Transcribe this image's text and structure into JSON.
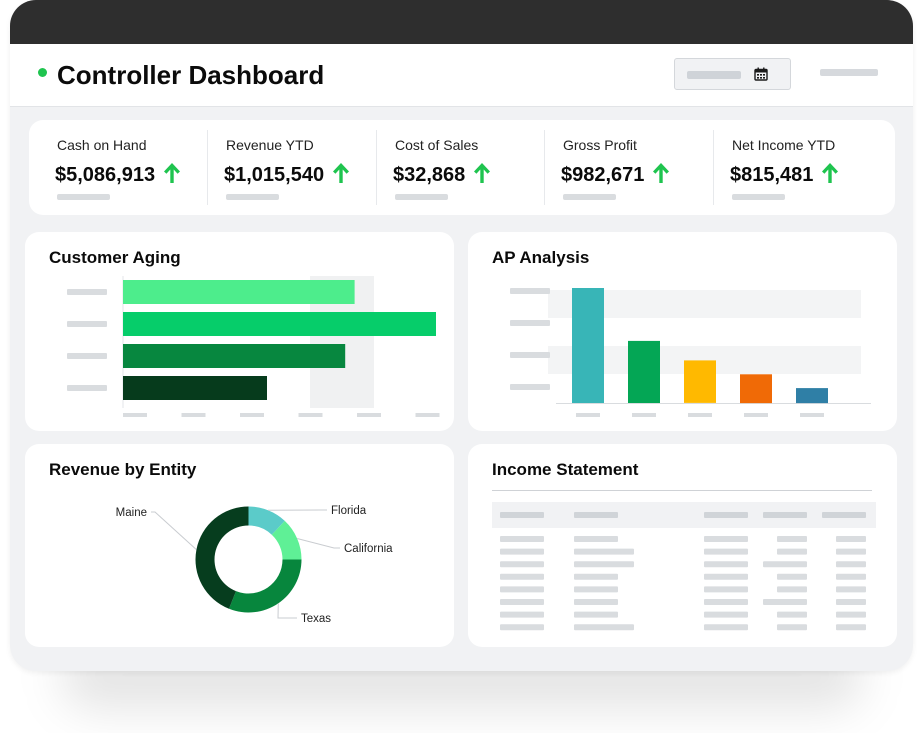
{
  "header": {
    "title": "Controller Dashboard",
    "status_color": "#1fc44f",
    "date_icon": "calendar-icon"
  },
  "kpis": [
    {
      "label": "Cash on Hand",
      "value": "$5,086,913",
      "trend": "up",
      "trend_icon": "arrow-up-icon"
    },
    {
      "label": "Revenue YTD",
      "value": "$1,015,540",
      "trend": "up",
      "trend_icon": "arrow-up-icon"
    },
    {
      "label": "Cost of Sales",
      "value": "$32,868",
      "trend": "up",
      "trend_icon": "arrow-up-icon"
    },
    {
      "label": "Gross Profit",
      "value": "$982,671",
      "trend": "up",
      "trend_icon": "arrow-up-icon"
    },
    {
      "label": "Net Income YTD",
      "value": "$815,481",
      "trend": "up",
      "trend_icon": "arrow-up-icon"
    }
  ],
  "colors": {
    "trend_up": "#1fc44f",
    "placeholder": "#d9dcdf"
  },
  "customer_aging": {
    "title": "Customer Aging",
    "chart_data": {
      "type": "bar",
      "orientation": "horizontal",
      "values": [
        0.74,
        1.0,
        0.71,
        0.46
      ],
      "colors": [
        "#4ded8c",
        "#06cd6a",
        "#07873f",
        "#063b1c"
      ],
      "grid": true
    }
  },
  "ap_analysis": {
    "title": "AP Analysis",
    "chart_data": {
      "type": "bar",
      "orientation": "vertical",
      "values": [
        1.0,
        0.54,
        0.37,
        0.25,
        0.13
      ],
      "colors": [
        "#38b5b7",
        "#04a655",
        "#ffb900",
        "#f06a06",
        "#2f7fa6"
      ],
      "grid": true
    }
  },
  "revenue_by_entity": {
    "title": "Revenue by Entity",
    "chart_data": {
      "type": "pie",
      "donut": true,
      "slices": [
        {
          "label": "Florida",
          "value": 12,
          "color": "#5bcbc9"
        },
        {
          "label": "California",
          "value": 13,
          "color": "#5ff096"
        },
        {
          "label": "Texas",
          "value": 31,
          "color": "#07863d"
        },
        {
          "label": "Maine",
          "value": 44,
          "color": "#063d1e"
        }
      ]
    }
  },
  "income_statement": {
    "title": "Income Statement",
    "row_count": 8
  }
}
